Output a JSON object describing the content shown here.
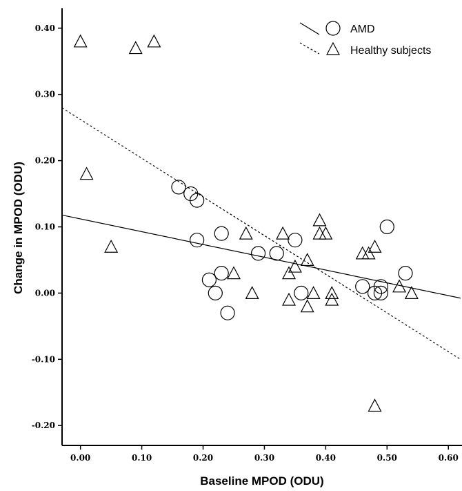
{
  "chart_data": {
    "type": "scatter",
    "title": "",
    "xlabel": "Baseline MPOD (ODU)",
    "ylabel": "Change in MPOD (ODU)",
    "xlim": [
      -0.03,
      0.62
    ],
    "ylim": [
      -0.23,
      0.43
    ],
    "x_ticks": [
      "0.00",
      "0.10",
      "0.20",
      "0.30",
      "0.40",
      "0.50",
      "0.60"
    ],
    "y_ticks": [
      "-0.20",
      "-0.10",
      "0.00",
      "0.10",
      "0.20",
      "0.30",
      "0.40"
    ],
    "legend_position": "top-right",
    "grid": false,
    "series": [
      {
        "name": "AMD",
        "marker": "circle",
        "line_style": "solid",
        "fit_line": {
          "intercept": 0.112,
          "slope": -0.193
        },
        "points": [
          [
            0.16,
            0.16
          ],
          [
            0.18,
            0.15
          ],
          [
            0.19,
            0.14
          ],
          [
            0.19,
            0.08
          ],
          [
            0.23,
            0.09
          ],
          [
            0.21,
            0.02
          ],
          [
            0.22,
            0.0
          ],
          [
            0.23,
            0.03
          ],
          [
            0.24,
            -0.03
          ],
          [
            0.29,
            0.06
          ],
          [
            0.32,
            0.06
          ],
          [
            0.35,
            0.08
          ],
          [
            0.36,
            0.0
          ],
          [
            0.46,
            0.01
          ],
          [
            0.48,
            0.0
          ],
          [
            0.49,
            0.01
          ],
          [
            0.49,
            0.0
          ],
          [
            0.5,
            0.1
          ],
          [
            0.53,
            0.03
          ]
        ]
      },
      {
        "name": "Healthy subjects",
        "marker": "triangle",
        "line_style": "dashed",
        "fit_line": {
          "intercept": 0.262,
          "slope": -0.584
        },
        "points": [
          [
            0.0,
            0.38
          ],
          [
            0.09,
            0.37
          ],
          [
            0.12,
            0.38
          ],
          [
            0.01,
            0.18
          ],
          [
            0.05,
            0.07
          ],
          [
            0.25,
            0.03
          ],
          [
            0.27,
            0.09
          ],
          [
            0.28,
            0.0
          ],
          [
            0.33,
            0.09
          ],
          [
            0.34,
            0.03
          ],
          [
            0.34,
            -0.01
          ],
          [
            0.35,
            0.04
          ],
          [
            0.37,
            0.05
          ],
          [
            0.37,
            -0.02
          ],
          [
            0.38,
            0.0
          ],
          [
            0.39,
            0.11
          ],
          [
            0.39,
            0.09
          ],
          [
            0.4,
            0.09
          ],
          [
            0.41,
            0.0
          ],
          [
            0.41,
            -0.01
          ],
          [
            0.46,
            0.06
          ],
          [
            0.47,
            0.06
          ],
          [
            0.48,
            0.07
          ],
          [
            0.48,
            -0.17
          ],
          [
            0.52,
            0.01
          ],
          [
            0.54,
            0.0
          ]
        ]
      }
    ]
  }
}
